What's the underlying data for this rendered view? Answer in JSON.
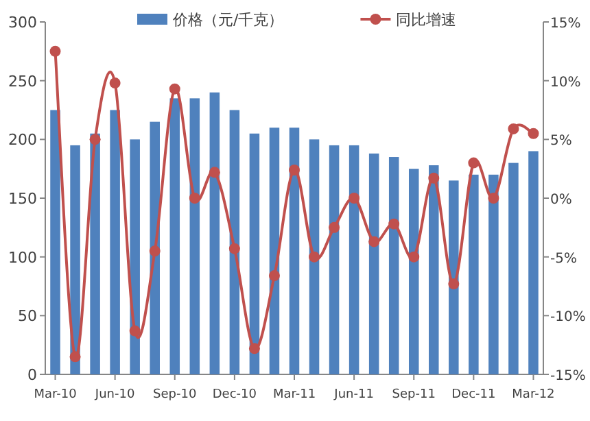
{
  "chart_data": {
    "type": "bar",
    "categories": [
      "Mar-10",
      null,
      null,
      "Jun-10",
      null,
      null,
      "Sep-10",
      null,
      null,
      "Dec-10",
      null,
      null,
      "Mar-11",
      null,
      null,
      "Jun-11",
      null,
      null,
      "Sep-11",
      null,
      null,
      "Dec-11",
      null,
      null,
      "Mar-12"
    ],
    "series": [
      {
        "name": "价格（元/千克）",
        "color": "#4f81bd",
        "values": [
          225,
          195,
          205,
          225,
          200,
          215,
          235,
          235,
          240,
          225,
          205,
          210,
          210,
          200,
          195,
          195,
          188,
          185,
          175,
          178,
          165,
          170,
          170,
          180,
          190
        ]
      },
      {
        "name": "同比增速",
        "type": "line",
        "axis": "y2",
        "color": "#c0504d",
        "values": [
          12.5,
          -13.5,
          5,
          9.8,
          -11.3,
          -4.5,
          9.3,
          0,
          2.2,
          -4.3,
          -12.8,
          -6.6,
          2.4,
          -5,
          -2.5,
          0,
          -3.7,
          -2.2,
          -5,
          1.7,
          -7.3,
          3,
          0,
          5.9,
          5.5
        ]
      }
    ],
    "ylim": [
      0,
      300
    ],
    "yticks": [
      0,
      50,
      100,
      150,
      200,
      250,
      300
    ],
    "y2lim": [
      -15,
      15
    ],
    "y2ticks": [
      {
        "value": -15,
        "label": "-15%"
      },
      {
        "value": -10,
        "label": "-10%"
      },
      {
        "value": -5,
        "label": "-5%"
      },
      {
        "value": 0,
        "label": "0%"
      },
      {
        "value": 5,
        "label": "5%"
      },
      {
        "value": 10,
        "label": "10%"
      },
      {
        "value": 15,
        "label": "15%"
      }
    ],
    "marker": "circle",
    "legend": "top",
    "grid": false
  }
}
